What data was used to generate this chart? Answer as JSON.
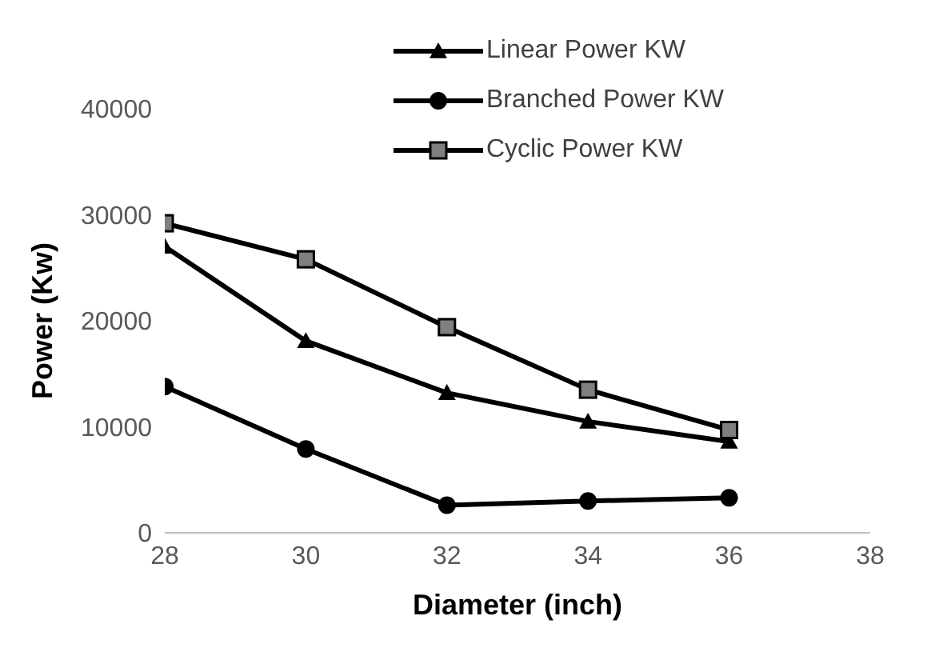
{
  "chart_data": {
    "type": "line",
    "xlabel": "Diameter (inch)",
    "ylabel": "Power (Kw)",
    "x": [
      28,
      30,
      32,
      34,
      36
    ],
    "xlim": [
      28,
      38
    ],
    "xticks": [
      28,
      30,
      32,
      34,
      36,
      38
    ],
    "ylim": [
      0,
      40000
    ],
    "yticks": [
      0,
      10000,
      20000,
      30000,
      40000
    ],
    "grid": false,
    "legend": "top right",
    "series": [
      {
        "name": "Linear Power KW",
        "color": "#000000",
        "marker": "triangle",
        "values": [
          27000,
          18100,
          13200,
          10500,
          8600
        ]
      },
      {
        "name": "Branched Power KW",
        "color": "#000000",
        "marker": "circle",
        "values": [
          13800,
          7900,
          2600,
          3000,
          3300
        ]
      },
      {
        "name": "Cyclic Power KW",
        "color": "#000000",
        "marker": "square",
        "values": [
          29200,
          25800,
          19400,
          13500,
          9700
        ]
      }
    ]
  }
}
